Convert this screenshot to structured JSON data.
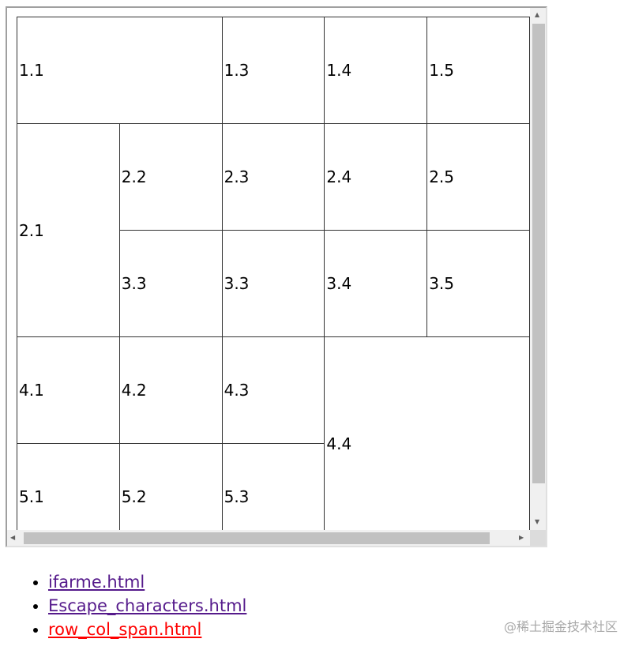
{
  "table": {
    "rows": [
      [
        {
          "t": "1.1",
          "cs": 2
        },
        {
          "t": "1.3"
        },
        {
          "t": "1.4"
        },
        {
          "t": "1.5"
        }
      ],
      [
        {
          "t": "2.1",
          "rs": 2
        },
        {
          "t": "2.2"
        },
        {
          "t": "2.3"
        },
        {
          "t": "2.4"
        },
        {
          "t": "2.5"
        }
      ],
      [
        {
          "t": "3.3"
        },
        {
          "t": "3.3"
        },
        {
          "t": "3.4"
        },
        {
          "t": "3.5"
        }
      ],
      [
        {
          "t": "4.1"
        },
        {
          "t": "4.2"
        },
        {
          "t": "4.3"
        },
        {
          "t": "4.4",
          "rs": 2,
          "cs": 2
        }
      ],
      [
        {
          "t": "5.1"
        },
        {
          "t": "5.2"
        },
        {
          "t": "5.3"
        }
      ]
    ]
  },
  "links": [
    {
      "label": "ifarme.html",
      "color": "#551a8b"
    },
    {
      "label": "Escape_characters.html",
      "color": "#551a8b"
    },
    {
      "label": "row_col_span.html",
      "color": "#ff0000"
    }
  ],
  "watermark": "@稀土掘金技术社区"
}
